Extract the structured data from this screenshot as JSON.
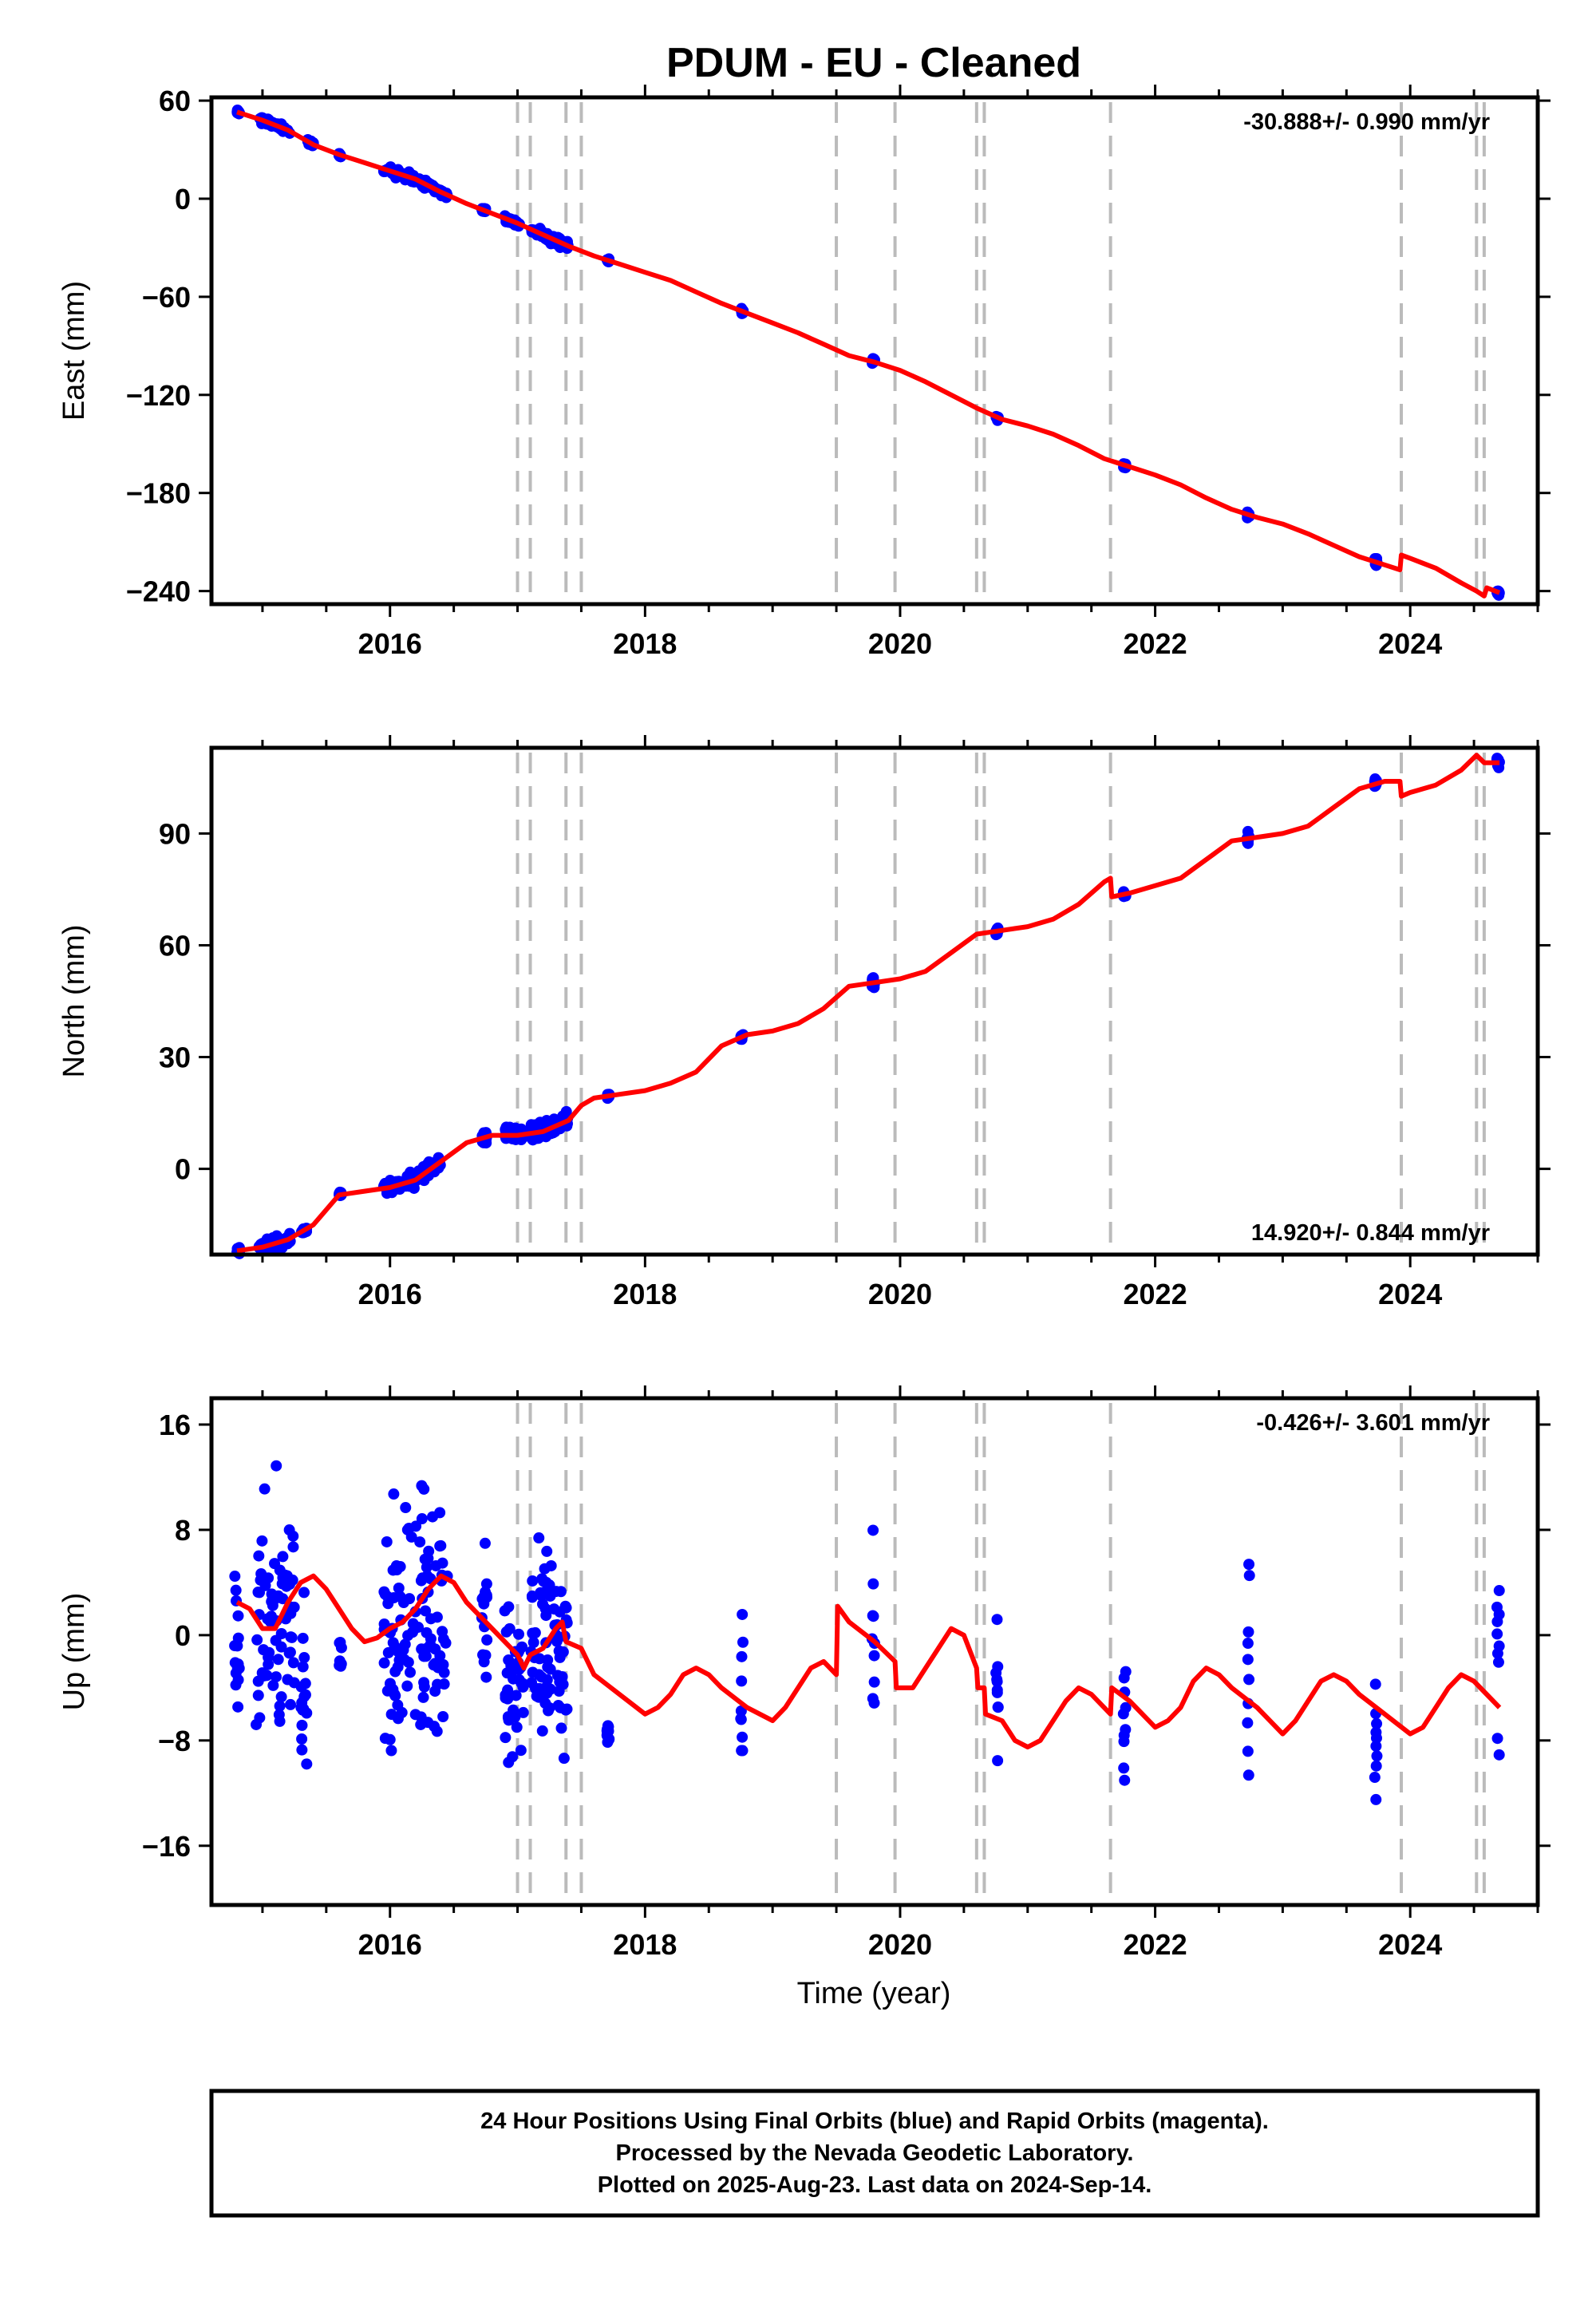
{
  "title": "PDUM  - EU - Cleaned",
  "xlabel": "Time (year)",
  "footer": [
    "24 Hour Positions Using Final Orbits (blue) and Rapid Orbits (magenta).",
    "Processed by the Nevada Geodetic Laboratory.",
    "Plotted on 2025-Aug-23. Last data on 2024-Sep-14."
  ],
  "colors": {
    "data": "#0000ff",
    "model": "#ff0000",
    "events": "#bbbbbb",
    "frame": "#000000"
  },
  "chart_data": [
    {
      "type": "scatter",
      "name": "east",
      "ylabel": "East (mm)",
      "rate_label": "-30.888+/- 0.990 mm/yr",
      "xlim": [
        2014.6,
        2025.0
      ],
      "ylim": [
        -248,
        62
      ],
      "yticks": [
        60,
        0,
        -60,
        -120,
        -180,
        -240
      ],
      "ytick_labels": [
        "60",
        "0",
        "−60",
        "−120",
        "−180",
        "−240"
      ],
      "xticks": [
        2016,
        2018,
        2020,
        2022,
        2024
      ],
      "xtick_labels": [
        "2016",
        "2018",
        "2020",
        "2022",
        "2024"
      ],
      "event_lines": [
        2017.0,
        2017.1,
        2017.38,
        2017.5,
        2019.5,
        2019.96,
        2020.6,
        2020.66,
        2021.65,
        2023.93,
        2024.52,
        2024.58
      ],
      "model": [
        [
          2014.8,
          53
        ],
        [
          2015.0,
          48
        ],
        [
          2015.2,
          42
        ],
        [
          2015.4,
          33
        ],
        [
          2015.6,
          27
        ],
        [
          2015.8,
          22
        ],
        [
          2016.0,
          17
        ],
        [
          2016.2,
          12
        ],
        [
          2016.4,
          4
        ],
        [
          2016.6,
          -3
        ],
        [
          2016.8,
          -9
        ],
        [
          2017.0,
          -15
        ],
        [
          2017.2,
          -22
        ],
        [
          2017.4,
          -29
        ],
        [
          2017.6,
          -35
        ],
        [
          2017.8,
          -40
        ],
        [
          2018.0,
          -45
        ],
        [
          2018.2,
          -50
        ],
        [
          2018.4,
          -57
        ],
        [
          2018.6,
          -64
        ],
        [
          2018.8,
          -70
        ],
        [
          2019.0,
          -76
        ],
        [
          2019.2,
          -82
        ],
        [
          2019.4,
          -89
        ],
        [
          2019.6,
          -96
        ],
        [
          2019.8,
          -100
        ],
        [
          2020.0,
          -105
        ],
        [
          2020.2,
          -112
        ],
        [
          2020.4,
          -120
        ],
        [
          2020.6,
          -128
        ],
        [
          2020.8,
          -135
        ],
        [
          2021.0,
          -139
        ],
        [
          2021.2,
          -144
        ],
        [
          2021.4,
          -151
        ],
        [
          2021.6,
          -159
        ],
        [
          2021.8,
          -164
        ],
        [
          2022.0,
          -169
        ],
        [
          2022.2,
          -175
        ],
        [
          2022.4,
          -183
        ],
        [
          2022.6,
          -190
        ],
        [
          2022.8,
          -195
        ],
        [
          2023.0,
          -199
        ],
        [
          2023.2,
          -205
        ],
        [
          2023.4,
          -212
        ],
        [
          2023.6,
          -219
        ],
        [
          2023.8,
          -224
        ],
        [
          2023.92,
          -227
        ],
        [
          2023.93,
          -218
        ],
        [
          2024.0,
          -220
        ],
        [
          2024.2,
          -226
        ],
        [
          2024.4,
          -235
        ],
        [
          2024.52,
          -240
        ],
        [
          2024.58,
          -243
        ],
        [
          2024.6,
          -238
        ],
        [
          2024.7,
          -241
        ]
      ],
      "clusters": [
        [
          2014.8,
          2014.82,
          53,
          2
        ],
        [
          2014.97,
          2015.22,
          44,
          3
        ],
        [
          2015.35,
          2015.4,
          34,
          2
        ],
        [
          2015.6,
          2015.62,
          27,
          1.5
        ],
        [
          2015.95,
          2016.35,
          12,
          4
        ],
        [
          2016.35,
          2016.45,
          3,
          2.5
        ],
        [
          2016.72,
          2016.75,
          -10,
          2
        ],
        [
          2016.9,
          2017.02,
          -15,
          3
        ],
        [
          2017.1,
          2017.4,
          -25,
          4
        ],
        [
          2017.7,
          2017.72,
          -41,
          2
        ],
        [
          2018.75,
          2018.77,
          -70,
          2.5
        ],
        [
          2019.78,
          2019.8,
          -99,
          3
        ],
        [
          2020.75,
          2020.77,
          -134,
          2.5
        ],
        [
          2021.75,
          2021.77,
          -163,
          2
        ],
        [
          2022.72,
          2022.74,
          -193,
          3
        ],
        [
          2023.72,
          2023.74,
          -224,
          3
        ],
        [
          2024.68,
          2024.7,
          -241,
          2.5
        ]
      ]
    },
    {
      "type": "scatter",
      "name": "north",
      "ylabel": "North (mm)",
      "rate_label": "14.920+/- 0.844 mm/yr",
      "xlim": [
        2014.6,
        2025.0
      ],
      "ylim": [
        -23,
        113
      ],
      "yticks": [
        90,
        60,
        30,
        0
      ],
      "ytick_labels": [
        "90",
        "60",
        "30",
        "0"
      ],
      "xticks": [
        2016,
        2018,
        2020,
        2022,
        2024
      ],
      "xtick_labels": [
        "2016",
        "2018",
        "2020",
        "2022",
        "2024"
      ],
      "event_lines": [
        2017.0,
        2017.1,
        2017.38,
        2017.5,
        2019.5,
        2019.96,
        2020.6,
        2020.66,
        2021.65,
        2023.93,
        2024.52,
        2024.58
      ],
      "model": [
        [
          2014.8,
          -22
        ],
        [
          2015.0,
          -21
        ],
        [
          2015.2,
          -19
        ],
        [
          2015.4,
          -15
        ],
        [
          2015.6,
          -7
        ],
        [
          2015.8,
          -6
        ],
        [
          2016.0,
          -5
        ],
        [
          2016.2,
          -3
        ],
        [
          2016.4,
          2
        ],
        [
          2016.6,
          7
        ],
        [
          2016.8,
          9
        ],
        [
          2017.0,
          9
        ],
        [
          2017.2,
          10
        ],
        [
          2017.4,
          13
        ],
        [
          2017.5,
          17
        ],
        [
          2017.6,
          19
        ],
        [
          2017.8,
          20
        ],
        [
          2018.0,
          21
        ],
        [
          2018.2,
          23
        ],
        [
          2018.4,
          26
        ],
        [
          2018.6,
          33
        ],
        [
          2018.8,
          36
        ],
        [
          2019.0,
          37
        ],
        [
          2019.2,
          39
        ],
        [
          2019.4,
          43
        ],
        [
          2019.6,
          49
        ],
        [
          2019.8,
          50
        ],
        [
          2020.0,
          51
        ],
        [
          2020.2,
          53
        ],
        [
          2020.4,
          58
        ],
        [
          2020.6,
          63
        ],
        [
          2020.8,
          64
        ],
        [
          2021.0,
          65
        ],
        [
          2021.2,
          67
        ],
        [
          2021.4,
          71
        ],
        [
          2021.6,
          77
        ],
        [
          2021.65,
          78
        ],
        [
          2021.66,
          73
        ],
        [
          2021.8,
          74
        ],
        [
          2022.0,
          76
        ],
        [
          2022.2,
          78
        ],
        [
          2022.4,
          83
        ],
        [
          2022.6,
          88
        ],
        [
          2022.8,
          89
        ],
        [
          2023.0,
          90
        ],
        [
          2023.2,
          92
        ],
        [
          2023.4,
          97
        ],
        [
          2023.6,
          102
        ],
        [
          2023.8,
          104
        ],
        [
          2023.92,
          104
        ],
        [
          2023.93,
          100
        ],
        [
          2024.0,
          101
        ],
        [
          2024.2,
          103
        ],
        [
          2024.4,
          107
        ],
        [
          2024.52,
          111
        ],
        [
          2024.58,
          109
        ],
        [
          2024.7,
          109
        ]
      ],
      "clusters": [
        [
          2014.8,
          2014.82,
          -19,
          2
        ],
        [
          2014.97,
          2015.22,
          -19,
          2.5
        ],
        [
          2015.3,
          2015.35,
          -16,
          1
        ],
        [
          2015.6,
          2015.62,
          -5,
          1
        ],
        [
          2015.95,
          2016.4,
          -3,
          3
        ],
        [
          2016.72,
          2016.76,
          7,
          3
        ],
        [
          2016.9,
          2017.05,
          9,
          3
        ],
        [
          2017.1,
          2017.4,
          11,
          4
        ],
        [
          2017.7,
          2017.72,
          20,
          1
        ],
        [
          2018.75,
          2018.77,
          35,
          1.5
        ],
        [
          2019.78,
          2019.8,
          50,
          2.5
        ],
        [
          2020.75,
          2020.77,
          63,
          1.5
        ],
        [
          2021.75,
          2021.77,
          75,
          1.5
        ],
        [
          2022.72,
          2022.74,
          89,
          3
        ],
        [
          2023.72,
          2023.74,
          102,
          2
        ],
        [
          2024.68,
          2024.7,
          110,
          2
        ]
      ]
    },
    {
      "type": "scatter",
      "name": "up",
      "ylabel": "Up (mm)",
      "rate_label": "-0.426+/- 3.601 mm/yr",
      "xlim": [
        2014.6,
        2025.0
      ],
      "ylim": [
        -20.5,
        18
      ],
      "yticks": [
        16,
        8,
        0,
        -8,
        -16
      ],
      "ytick_labels": [
        "16",
        "8",
        "0",
        "−8",
        "−16"
      ],
      "xticks": [
        2016,
        2018,
        2020,
        2022,
        2024
      ],
      "xtick_labels": [
        "2016",
        "2018",
        "2020",
        "2022",
        "2024"
      ],
      "event_lines": [
        2017.0,
        2017.1,
        2017.38,
        2017.5,
        2019.5,
        2019.96,
        2020.6,
        2020.66,
        2021.65,
        2023.93,
        2024.52,
        2024.58
      ],
      "model": [
        [
          2014.8,
          2.5
        ],
        [
          2014.9,
          2.0
        ],
        [
          2015.0,
          0.5
        ],
        [
          2015.1,
          0.5
        ],
        [
          2015.2,
          2.5
        ],
        [
          2015.3,
          4.0
        ],
        [
          2015.4,
          4.5
        ],
        [
          2015.5,
          3.5
        ],
        [
          2015.6,
          2.0
        ],
        [
          2015.7,
          0.5
        ],
        [
          2015.8,
          -0.5
        ],
        [
          2015.9,
          -0.2
        ],
        [
          2016.0,
          0.5
        ],
        [
          2016.1,
          1.0
        ],
        [
          2016.2,
          2.0
        ],
        [
          2016.3,
          3.5
        ],
        [
          2016.4,
          4.5
        ],
        [
          2016.5,
          4.0
        ],
        [
          2016.6,
          2.5
        ],
        [
          2016.7,
          1.5
        ],
        [
          2016.8,
          0.5
        ],
        [
          2016.9,
          -0.5
        ],
        [
          2017.0,
          -1.5
        ],
        [
          2017.05,
          -2.5
        ],
        [
          2017.1,
          -1.5
        ],
        [
          2017.2,
          -1.0
        ],
        [
          2017.3,
          0.5
        ],
        [
          2017.35,
          1.0
        ],
        [
          2017.38,
          -0.5
        ],
        [
          2017.5,
          -1.0
        ],
        [
          2017.6,
          -3.0
        ],
        [
          2017.8,
          -4.5
        ],
        [
          2018.0,
          -6.0
        ],
        [
          2018.1,
          -5.5
        ],
        [
          2018.2,
          -4.5
        ],
        [
          2018.3,
          -3.0
        ],
        [
          2018.4,
          -2.5
        ],
        [
          2018.5,
          -3.0
        ],
        [
          2018.6,
          -4.0
        ],
        [
          2018.8,
          -5.5
        ],
        [
          2019.0,
          -6.5
        ],
        [
          2019.1,
          -5.5
        ],
        [
          2019.2,
          -4.0
        ],
        [
          2019.3,
          -2.5
        ],
        [
          2019.4,
          -2.0
        ],
        [
          2019.5,
          -3.0
        ],
        [
          2019.51,
          2.2
        ],
        [
          2019.6,
          1.0
        ],
        [
          2019.8,
          -0.5
        ],
        [
          2019.96,
          -2.0
        ],
        [
          2019.97,
          -4.0
        ],
        [
          2020.1,
          -4.0
        ],
        [
          2020.2,
          -2.5
        ],
        [
          2020.3,
          -1.0
        ],
        [
          2020.4,
          0.5
        ],
        [
          2020.5,
          0.0
        ],
        [
          2020.6,
          -2.5
        ],
        [
          2020.61,
          -4.0
        ],
        [
          2020.66,
          -4.0
        ],
        [
          2020.67,
          -6.0
        ],
        [
          2020.8,
          -6.5
        ],
        [
          2020.9,
          -8.0
        ],
        [
          2021.0,
          -8.5
        ],
        [
          2021.1,
          -8.0
        ],
        [
          2021.2,
          -6.5
        ],
        [
          2021.3,
          -5.0
        ],
        [
          2021.4,
          -4.0
        ],
        [
          2021.5,
          -4.5
        ],
        [
          2021.65,
          -6.0
        ],
        [
          2021.66,
          -4.0
        ],
        [
          2021.8,
          -5.0
        ],
        [
          2022.0,
          -7.0
        ],
        [
          2022.1,
          -6.5
        ],
        [
          2022.2,
          -5.5
        ],
        [
          2022.3,
          -3.5
        ],
        [
          2022.4,
          -2.5
        ],
        [
          2022.5,
          -3.0
        ],
        [
          2022.6,
          -4.0
        ],
        [
          2022.8,
          -5.5
        ],
        [
          2023.0,
          -7.5
        ],
        [
          2023.1,
          -6.5
        ],
        [
          2023.2,
          -5.0
        ],
        [
          2023.3,
          -3.5
        ],
        [
          2023.4,
          -3.0
        ],
        [
          2023.5,
          -3.5
        ],
        [
          2023.6,
          -4.5
        ],
        [
          2023.8,
          -6.0
        ],
        [
          2024.0,
          -7.5
        ],
        [
          2024.1,
          -7.0
        ],
        [
          2024.2,
          -5.5
        ],
        [
          2024.3,
          -4.0
        ],
        [
          2024.4,
          -3.0
        ],
        [
          2024.5,
          -3.5
        ],
        [
          2024.6,
          -4.5
        ],
        [
          2024.7,
          -5.5
        ]
      ],
      "clusters": [
        [
          2014.78,
          2014.82,
          -1,
          5
        ],
        [
          2014.95,
          2015.25,
          1,
          7
        ],
        [
          2015.3,
          2015.35,
          -5,
          5
        ],
        [
          2015.6,
          2015.62,
          -1.5,
          1
        ],
        [
          2015.95,
          2016.45,
          1,
          7
        ],
        [
          2016.72,
          2016.76,
          3,
          5
        ],
        [
          2016.9,
          2017.05,
          -3,
          6
        ],
        [
          2017.1,
          2017.4,
          -1,
          6
        ],
        [
          2017.7,
          2017.72,
          -7.5,
          0.5
        ],
        [
          2018.75,
          2018.77,
          -5,
          6
        ],
        [
          2019.78,
          2019.8,
          1,
          6
        ],
        [
          2020.75,
          2020.77,
          -6,
          5
        ],
        [
          2021.75,
          2021.77,
          -6,
          5
        ],
        [
          2022.72,
          2022.74,
          -2,
          8
        ],
        [
          2023.72,
          2023.74,
          -7,
          8
        ],
        [
          2024.68,
          2024.7,
          -2,
          8
        ]
      ]
    }
  ]
}
